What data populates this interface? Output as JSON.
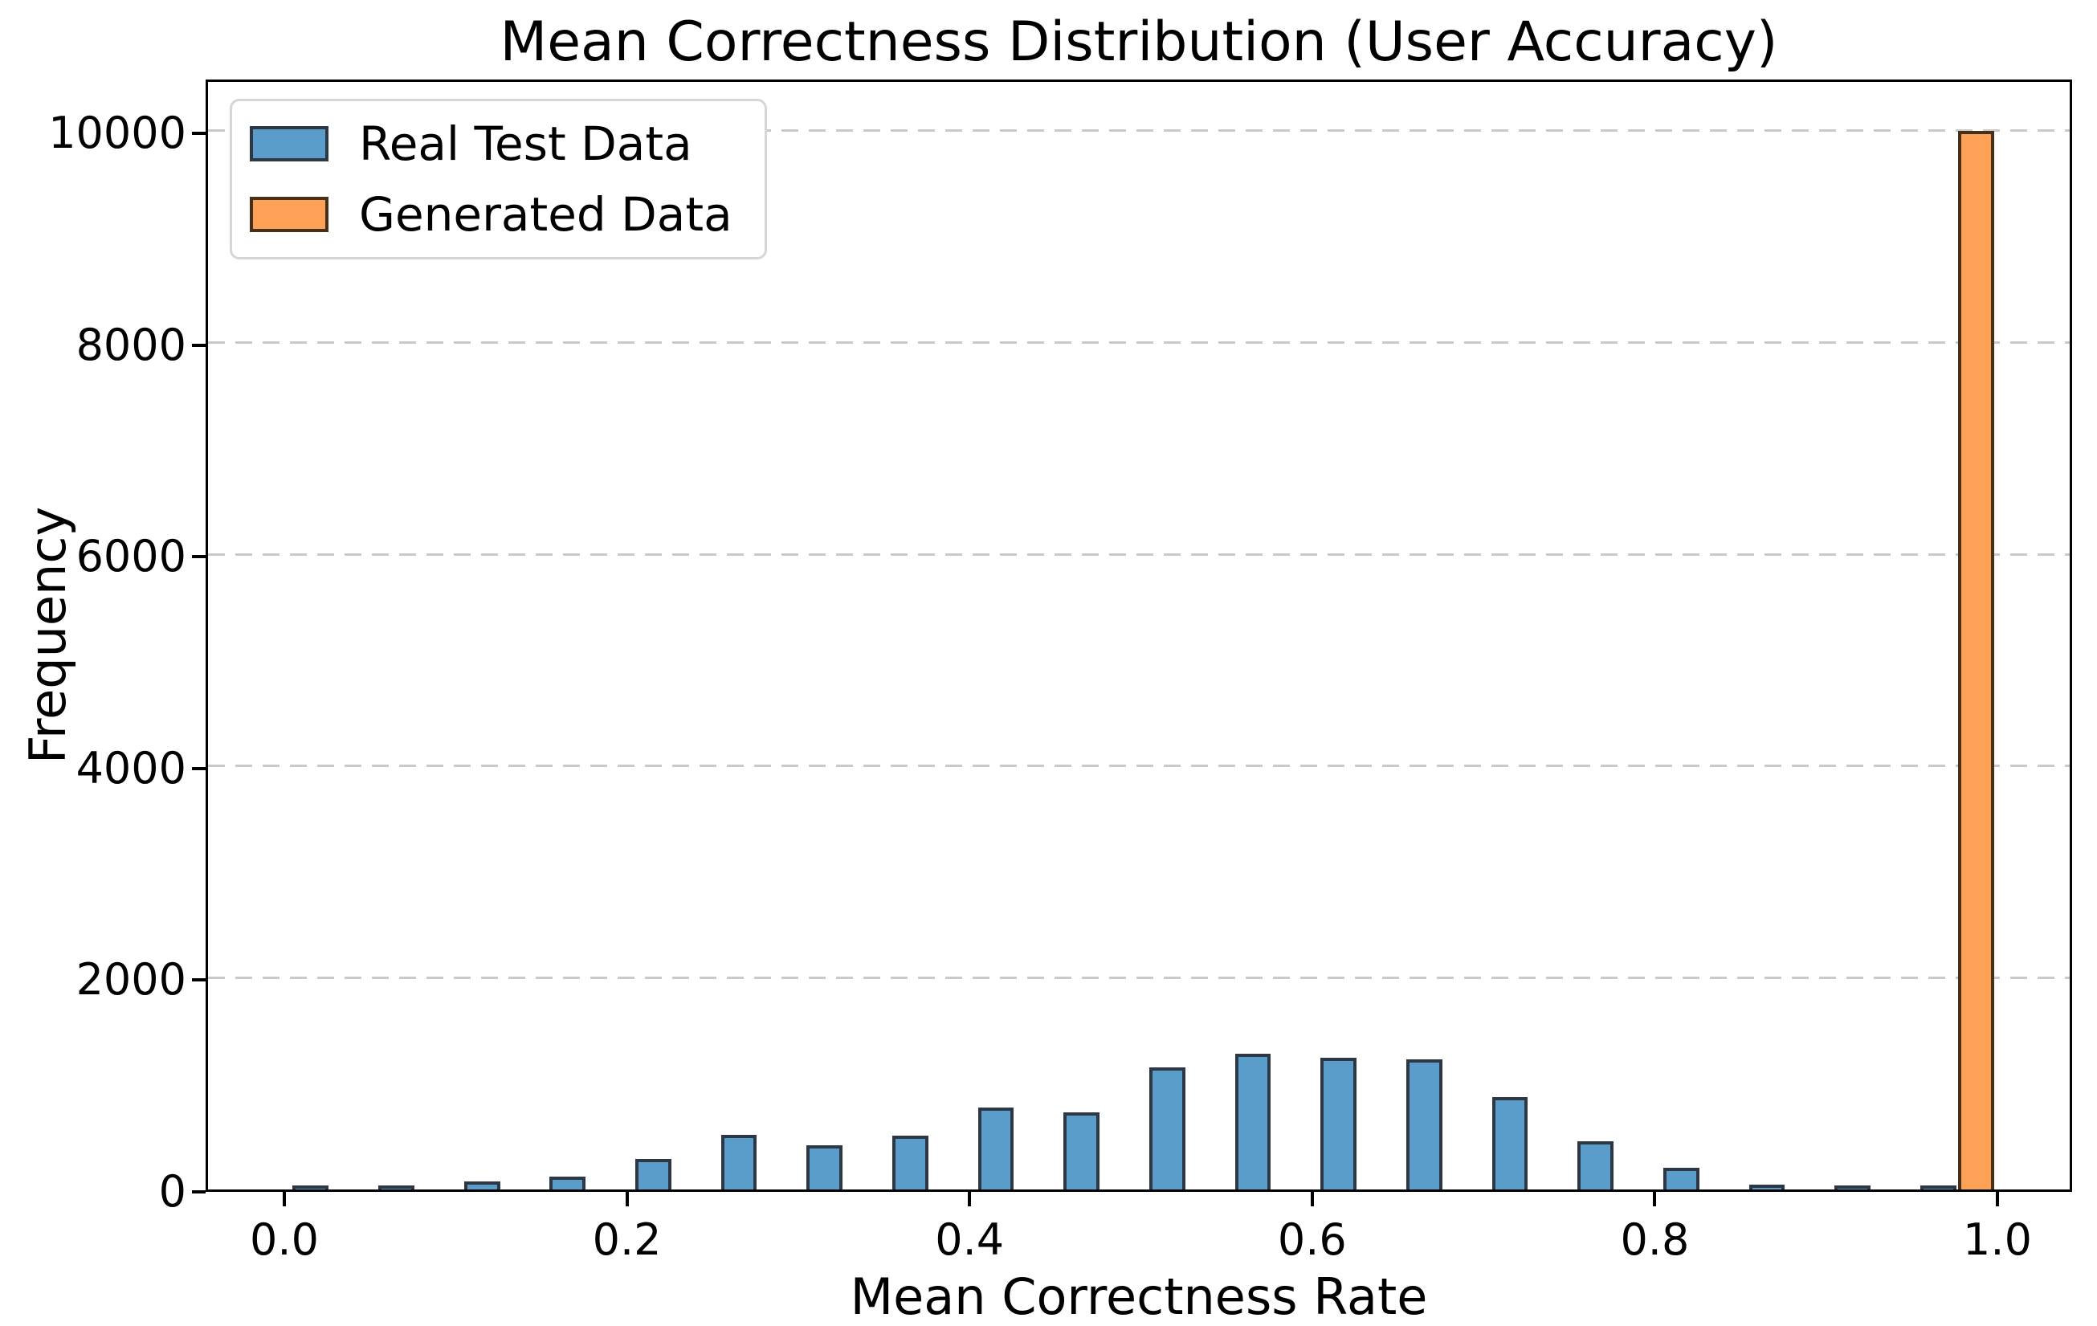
{
  "figure": {
    "title": "Mean Correctness Distribution (User Accuracy)"
  },
  "chart_data": {
    "type": "bar",
    "subtype": "histogram",
    "title": "Mean Correctness Distribution (User Accuracy)",
    "xlabel": "Mean Correctness Rate",
    "ylabel": "Frequency",
    "xlim": [
      -0.046,
      1.043
    ],
    "ylim": [
      0,
      10508
    ],
    "x_ticks": [
      0.0,
      0.2,
      0.4,
      0.6,
      0.8,
      1.0
    ],
    "x_tick_labels": [
      "0.0",
      "0.2",
      "0.4",
      "0.6",
      "0.8",
      "1.0"
    ],
    "y_ticks": [
      0,
      2000,
      4000,
      6000,
      8000,
      10000
    ],
    "y_tick_labels": [
      "0",
      "2000",
      "4000",
      "6000",
      "8000",
      "10000"
    ],
    "grid": "horizontal-dashed",
    "grid_color": "#c9c9c9",
    "legend_position": "upper-left",
    "bar_width": 0.021,
    "series": [
      {
        "name": "Real Test Data",
        "fill_color": "#5A9DCA",
        "edge_color": "#2E3844",
        "centers": [
          0.014,
          0.064,
          0.114,
          0.164,
          0.214,
          0.264,
          0.314,
          0.364,
          0.414,
          0.464,
          0.514,
          0.564,
          0.614,
          0.664,
          0.714,
          0.764,
          0.814,
          0.864,
          0.914,
          0.964
        ],
        "values": [
          15,
          35,
          75,
          120,
          290,
          515,
          420,
          505,
          775,
          725,
          1150,
          1285,
          1245,
          1230,
          875,
          455,
          205,
          45,
          18,
          8
        ]
      },
      {
        "name": "Generated Data",
        "fill_color": "#FDA156",
        "edge_color": "#463019",
        "centers": [
          0.986
        ],
        "values": [
          10000
        ]
      }
    ]
  }
}
